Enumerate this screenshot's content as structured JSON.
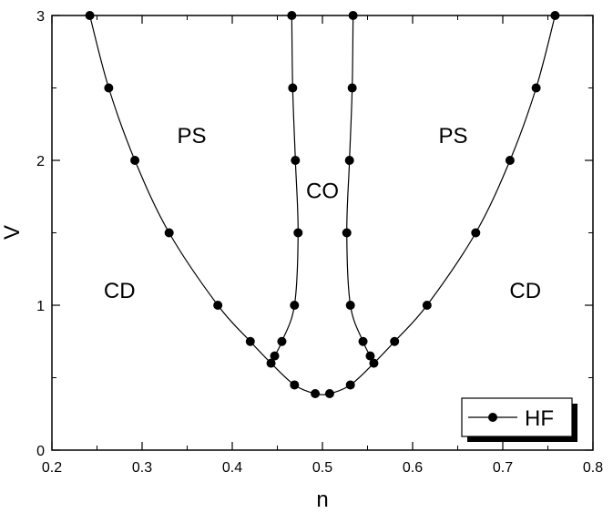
{
  "chart_data": {
    "type": "line",
    "xlabel": "n",
    "ylabel": "V",
    "xlim": [
      0.2,
      0.8
    ],
    "ylim": [
      0,
      3
    ],
    "x_ticks": [
      "0.2",
      "0.3",
      "0.4",
      "0.5",
      "0.6",
      "0.7",
      "0.8"
    ],
    "y_ticks": [
      "0",
      "1",
      "2",
      "3"
    ],
    "legend": {
      "label": "HF",
      "position": "bottom-right"
    },
    "region_labels": [
      {
        "text": "PS",
        "x": 0.355,
        "y": 2.17
      },
      {
        "text": "PS",
        "x": 0.645,
        "y": 2.17
      },
      {
        "text": "CO",
        "x": 0.5,
        "y": 1.79
      },
      {
        "text": "CD",
        "x": 0.275,
        "y": 1.1
      },
      {
        "text": "CD",
        "x": 0.725,
        "y": 1.1
      }
    ],
    "series": [
      {
        "points": [
          [
            0.242,
            3.0
          ],
          [
            0.263,
            2.5
          ],
          [
            0.292,
            2.0
          ],
          [
            0.33,
            1.5
          ],
          [
            0.384,
            1.0
          ],
          [
            0.42,
            0.75
          ],
          [
            0.443,
            0.6
          ],
          [
            0.469,
            0.45
          ],
          [
            0.492,
            0.39
          ]
        ]
      },
      {
        "points": [
          [
            0.508,
            0.39
          ],
          [
            0.531,
            0.45
          ],
          [
            0.557,
            0.6
          ],
          [
            0.58,
            0.75
          ],
          [
            0.616,
            1.0
          ],
          [
            0.67,
            1.5
          ],
          [
            0.708,
            2.0
          ],
          [
            0.737,
            2.5
          ],
          [
            0.758,
            3.0
          ]
        ]
      },
      {
        "points": [
          [
            0.447,
            0.65
          ],
          [
            0.455,
            0.75
          ],
          [
            0.469,
            1.0
          ],
          [
            0.473,
            1.5
          ],
          [
            0.47,
            2.0
          ],
          [
            0.467,
            2.5
          ],
          [
            0.466,
            3.0
          ]
        ]
      },
      {
        "points": [
          [
            0.553,
            0.65
          ],
          [
            0.545,
            0.75
          ],
          [
            0.531,
            1.0
          ],
          [
            0.527,
            1.5
          ],
          [
            0.53,
            2.0
          ],
          [
            0.533,
            2.5
          ],
          [
            0.534,
            3.0
          ]
        ]
      }
    ]
  }
}
